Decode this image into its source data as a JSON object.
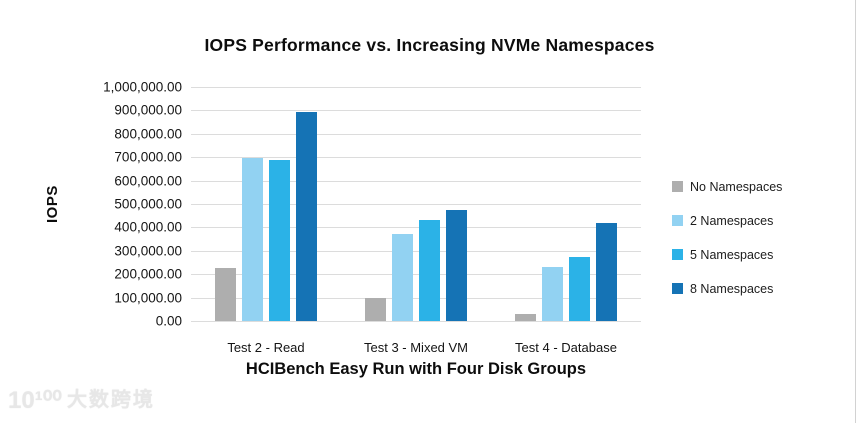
{
  "watermark": {
    "logo_text": "10¹⁰⁰",
    "brand_text": "大数跨境"
  },
  "chart_data": {
    "type": "bar",
    "title": "IOPS Performance vs. Increasing NVMe Namespaces",
    "xlabel": "HCIBench Easy Run with Four Disk Groups",
    "ylabel": "IOPS",
    "categories": [
      "Test 2 - Read",
      "Test 3 - Mixed VM",
      "Test 4 - Database"
    ],
    "series": [
      {
        "name": "No Namespaces",
        "color": "#aeaeae",
        "values": [
          225000,
          97000,
          32000
        ]
      },
      {
        "name": "2 Namespaces",
        "color": "#92d2f2",
        "values": [
          695000,
          370000,
          230000
        ]
      },
      {
        "name": "5 Namespaces",
        "color": "#2bb2e7",
        "values": [
          690000,
          430000,
          273000
        ]
      },
      {
        "name": "8 Namespaces",
        "color": "#1573b5",
        "values": [
          895000,
          475000,
          418000
        ]
      }
    ],
    "ylim": [
      0,
      1000000
    ],
    "y_tick_labels": [
      "1,000,000.00",
      "900,000.00",
      "800,000.00",
      "700,000.00",
      "600,000.00",
      "500,000.00",
      "400,000.00",
      "300,000.00",
      "200,000.00",
      "100,000.00",
      "0.00"
    ],
    "grid": true,
    "legend_position": "right"
  }
}
